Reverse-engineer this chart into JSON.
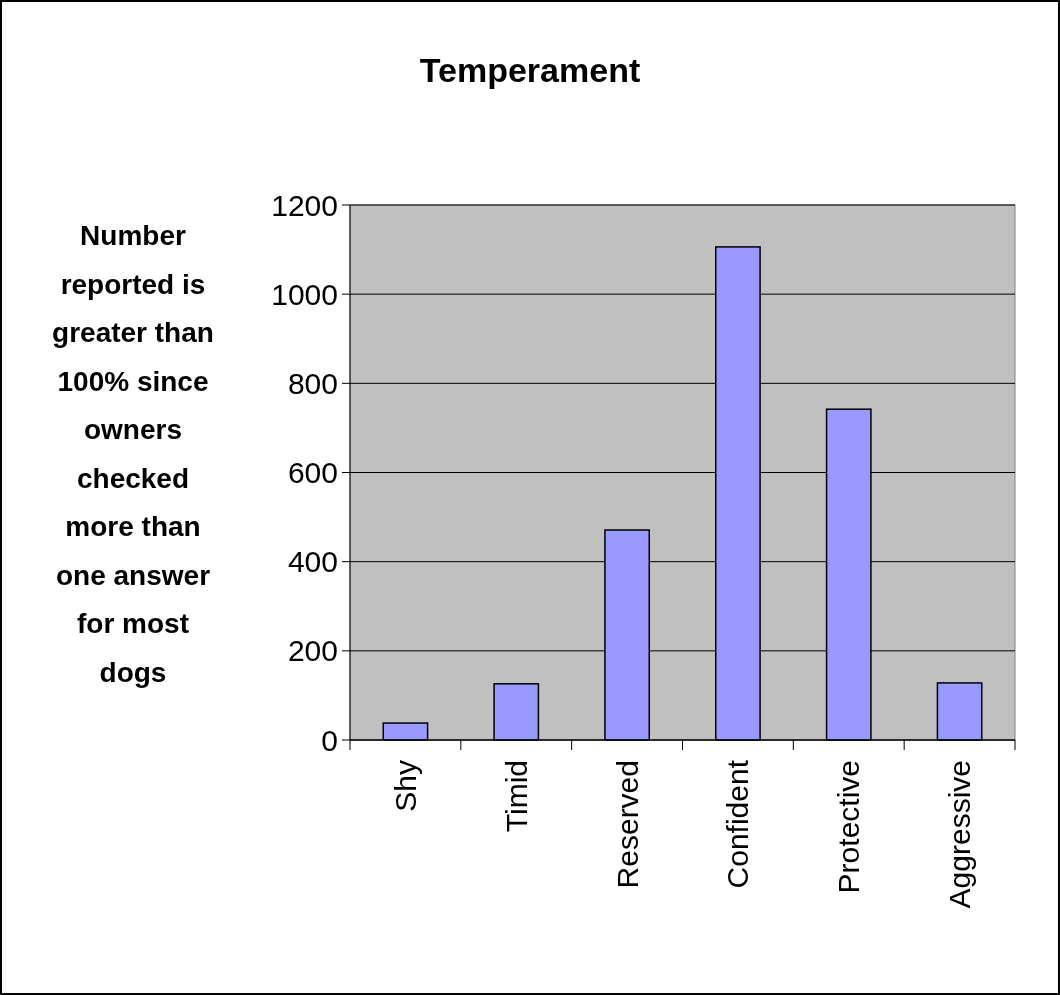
{
  "chart_data": {
    "type": "bar",
    "title": "Temperament",
    "ylabel": "Number reported is greater than 100% since owners checked more than one answer for most dogs",
    "categories": [
      "Shy",
      "Timid",
      "Reserved",
      "Confident",
      "Protective",
      "Aggressive"
    ],
    "values": [
      38,
      126,
      471,
      1106,
      742,
      128
    ],
    "color": "#9999ff",
    "ylim": [
      0,
      1200
    ],
    "yticks": [
      0,
      200,
      400,
      600,
      800,
      1000,
      1200
    ],
    "grid": "y"
  }
}
